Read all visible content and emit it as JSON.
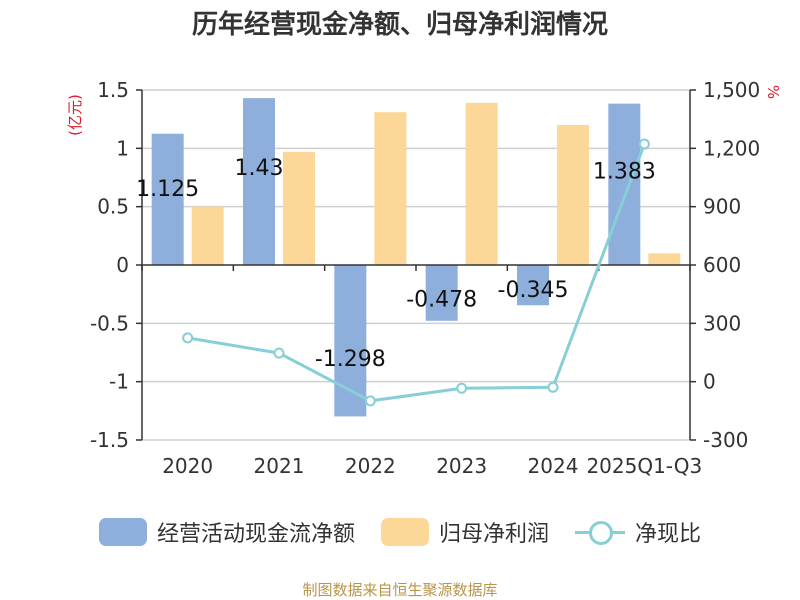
{
  "title": "历年经营现金净额、归母净利润情况",
  "source": "制图数据来自恒生聚源数据库",
  "chart_data": {
    "type": "bar",
    "categories": [
      "2020",
      "2021",
      "2022",
      "2023",
      "2024",
      "2025Q1-Q3"
    ],
    "y_left": {
      "unit": "(亿元)",
      "ylim": [
        -1.5,
        1.5
      ],
      "ticks": [
        -1.5,
        -1,
        -0.5,
        0,
        0.5,
        1,
        1.5
      ],
      "tick_labels": [
        "-1.5",
        "-1",
        "-0.5",
        "0",
        "0.5",
        "1",
        "1.5"
      ]
    },
    "y_right": {
      "unit": "%",
      "ylim": [
        -300,
        1500
      ],
      "ticks": [
        -300,
        0,
        300,
        600,
        900,
        1200,
        1500
      ],
      "tick_labels": [
        "-300",
        "0",
        "300",
        "600",
        "900",
        "1,200",
        "1,500"
      ]
    },
    "grid": true,
    "legend_position": "bottom",
    "series": [
      {
        "name": "经营活动现金流净额",
        "type": "bar",
        "axis": "left",
        "color": "#8eaedb",
        "values": [
          1.125,
          1.43,
          -1.298,
          -0.478,
          -0.345,
          1.383
        ],
        "labels": [
          "1.125",
          "1.43",
          "-1.298",
          "-0.478",
          "-0.345",
          "1.383"
        ]
      },
      {
        "name": "归母净利润",
        "type": "bar",
        "axis": "left",
        "color": "#fdd797",
        "values": [
          0.5,
          0.97,
          1.31,
          1.39,
          1.2,
          0.1
        ]
      },
      {
        "name": "净现比",
        "type": "line",
        "axis": "right",
        "color": "#87cfd6",
        "values": [
          225,
          147,
          -99,
          -34,
          -29,
          1222
        ]
      }
    ]
  }
}
